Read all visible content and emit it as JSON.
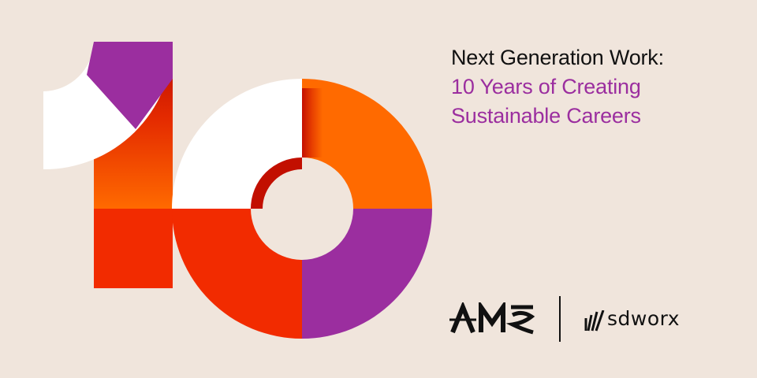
{
  "headline": {
    "line1": "Next Generation Work:",
    "line2": "10 Years of Creating",
    "line3": "Sustainable Careers"
  },
  "logos": {
    "ams": "AMS",
    "sdworx": "sdworx"
  },
  "colors": {
    "background": "#f0e5dc",
    "purple": "#9b2e9f",
    "orange": "#ff6a00",
    "red": "#f22b00",
    "dark_red": "#c20f00",
    "white": "#ffffff",
    "text": "#111111"
  }
}
